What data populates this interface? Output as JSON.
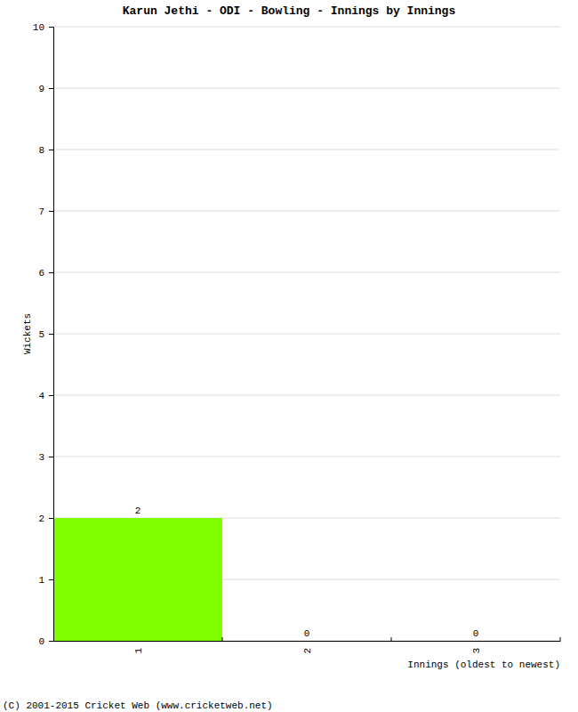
{
  "chart_data": {
    "type": "bar",
    "title": "Karun Jethi - ODI - Bowling - Innings by Innings",
    "x_label": "Innings (oldest to newest)",
    "y_label": "Wickets",
    "annotations": [
      "(C) 2001-2015 Cricket Web (www.cricketweb.net)"
    ],
    "categories": [
      "1",
      "2",
      "3"
    ],
    "values": [
      2,
      0,
      0
    ],
    "color": "#80ff00",
    "ylim": [
      0,
      10
    ],
    "yticks": [
      0,
      1,
      2,
      3,
      4,
      5,
      6,
      7,
      8,
      9,
      10
    ],
    "grid": true,
    "data_labels": true
  }
}
